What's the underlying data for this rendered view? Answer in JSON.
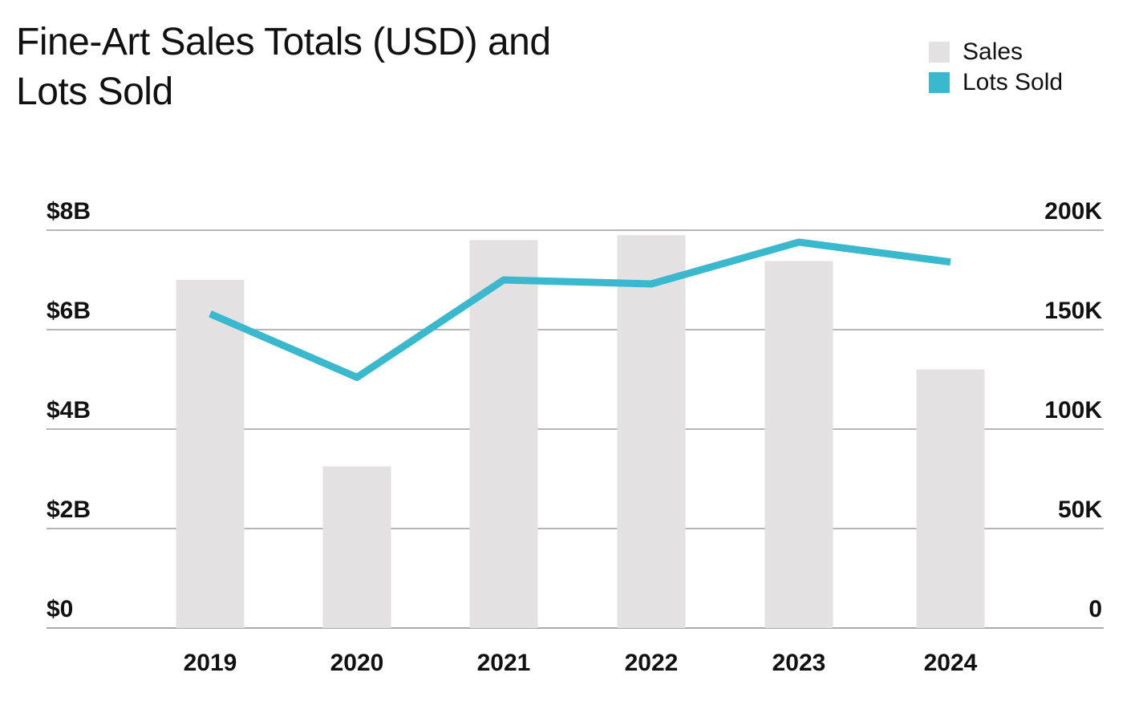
{
  "chart_data": {
    "type": "bar",
    "title": "Fine-Art Sales Totals (USD) and Lots Sold",
    "categories": [
      "2019",
      "2020",
      "2021",
      "2022",
      "2023",
      "2024"
    ],
    "series": [
      {
        "name": "Sales",
        "type": "bar",
        "axis": "left",
        "color": "#e4e1e2",
        "values": [
          7.0,
          3.25,
          7.8,
          7.9,
          7.38,
          5.2
        ]
      },
      {
        "name": "Lots Sold",
        "type": "line",
        "axis": "right",
        "color": "#3ab8cd",
        "values": [
          158000,
          126000,
          175000,
          173000,
          194000,
          184000
        ]
      }
    ],
    "y_left": {
      "ticks": [
        "$0",
        "$2B",
        "$4B",
        "$6B",
        "$8B"
      ],
      "range": [
        0,
        8
      ],
      "unit": "billion USD"
    },
    "y_right": {
      "ticks": [
        "0",
        "50K",
        "100K",
        "150K",
        "200K"
      ],
      "range": [
        0,
        200000
      ]
    },
    "grid": true,
    "legend": "top-right"
  }
}
